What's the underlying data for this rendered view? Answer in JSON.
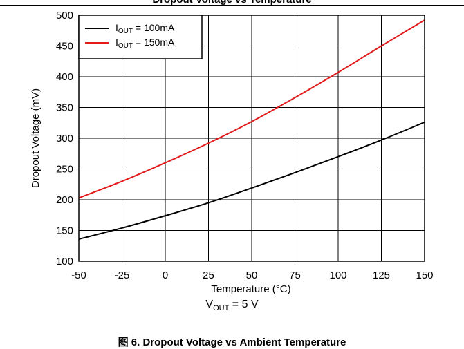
{
  "header": {
    "title": "Dropout Voltage vs Temperature"
  },
  "chart_data": {
    "type": "line",
    "xlabel": "Temperature (°C)",
    "ylabel": "Dropout Voltage (mV)",
    "xlim": [
      -50,
      150
    ],
    "ylim": [
      100,
      500
    ],
    "xticks": [
      -50,
      -25,
      0,
      25,
      50,
      75,
      100,
      125,
      150
    ],
    "yticks": [
      100,
      150,
      200,
      250,
      300,
      350,
      400,
      450,
      500
    ],
    "grid": true,
    "legend_position": "top-left",
    "series": [
      {
        "name": "I_OUT = 100mA",
        "legend_main": "I",
        "legend_sub": "OUT",
        "legend_rest": " = 100mA",
        "color": "#000000",
        "x": [
          -50,
          -25,
          0,
          25,
          50,
          75,
          100,
          125,
          150
        ],
        "y": [
          136,
          154,
          174,
          195,
          219,
          244,
          270,
          297,
          326
        ]
      },
      {
        "name": "I_OUT = 150mA",
        "legend_main": "I",
        "legend_sub": "OUT",
        "legend_rest": " = 150mA",
        "color": "#e31a1c",
        "x": [
          -50,
          -25,
          0,
          25,
          50,
          75,
          100,
          125,
          150
        ],
        "y": [
          203,
          230,
          260,
          292,
          327,
          366,
          407,
          450,
          492
        ]
      }
    ]
  },
  "condition": {
    "main": "V",
    "sub": "OUT",
    "rest": " = 5 V"
  },
  "caption": "图 6. Dropout Voltage vs Ambient Temperature"
}
